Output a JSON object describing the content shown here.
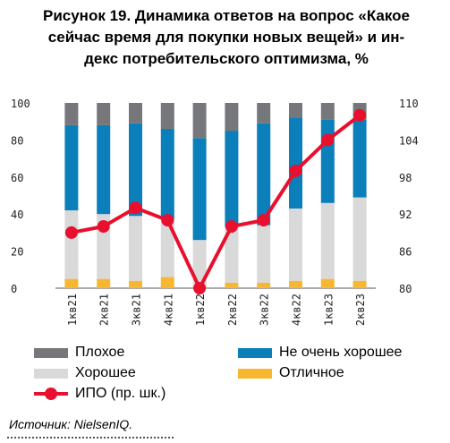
{
  "title_lines": [
    "Рисунок 19. Динамика ответов на вопрос «Какое",
    "сейчас время для покупки новых вещей» и ин-",
    "декс потребительского оптимизма, %"
  ],
  "source": "Источник: NielsenIQ.",
  "colors": {
    "bad": "#76777a",
    "not_very_good": "#0b7fba",
    "good": "#d9d9d9",
    "excellent": "#f7b730",
    "ipo": "#e8102e"
  },
  "chart_data": {
    "type": "bar",
    "stacked": true,
    "categories": [
      "1кв21",
      "2кв21",
      "3кв21",
      "4кв21",
      "1кв22",
      "2кв22",
      "3кв22",
      "4кв22",
      "1кв23",
      "2кв23"
    ],
    "series": [
      {
        "name": "Отличное",
        "values": [
          5,
          5,
          4,
          6,
          1,
          3,
          3,
          4,
          5,
          4
        ]
      },
      {
        "name": "Хорошее",
        "values": [
          37,
          35,
          35,
          31,
          25,
          30,
          31,
          39,
          41,
          45
        ]
      },
      {
        "name": "Не очень хорошее",
        "values": [
          46,
          48,
          50,
          49,
          55,
          52,
          55,
          49,
          45,
          42
        ]
      },
      {
        "name": "Плохое",
        "values": [
          12,
          12,
          11,
          14,
          19,
          15,
          11,
          8,
          9,
          9
        ]
      }
    ],
    "line_series": {
      "name": "ИПО (пр. шк.)",
      "values": [
        89,
        90,
        93,
        91,
        80,
        90,
        91,
        99,
        104,
        108
      ]
    },
    "ylim_left": [
      0,
      100
    ],
    "yticks_left": [
      "100",
      "80",
      "60",
      "40",
      "20",
      "0"
    ],
    "ylim_right": [
      80,
      110
    ],
    "yticks_right": [
      "110",
      "104",
      "98",
      "92",
      "86",
      "80"
    ]
  },
  "legend": [
    {
      "label": "Плохое",
      "key": "bad"
    },
    {
      "label": "Не очень хорошее",
      "key": "not_very_good"
    },
    {
      "label": "Хорошее",
      "key": "good"
    },
    {
      "label": "Отличное",
      "key": "excellent"
    },
    {
      "label": "ИПО (пр. шк.)",
      "key": "ipo"
    }
  ]
}
